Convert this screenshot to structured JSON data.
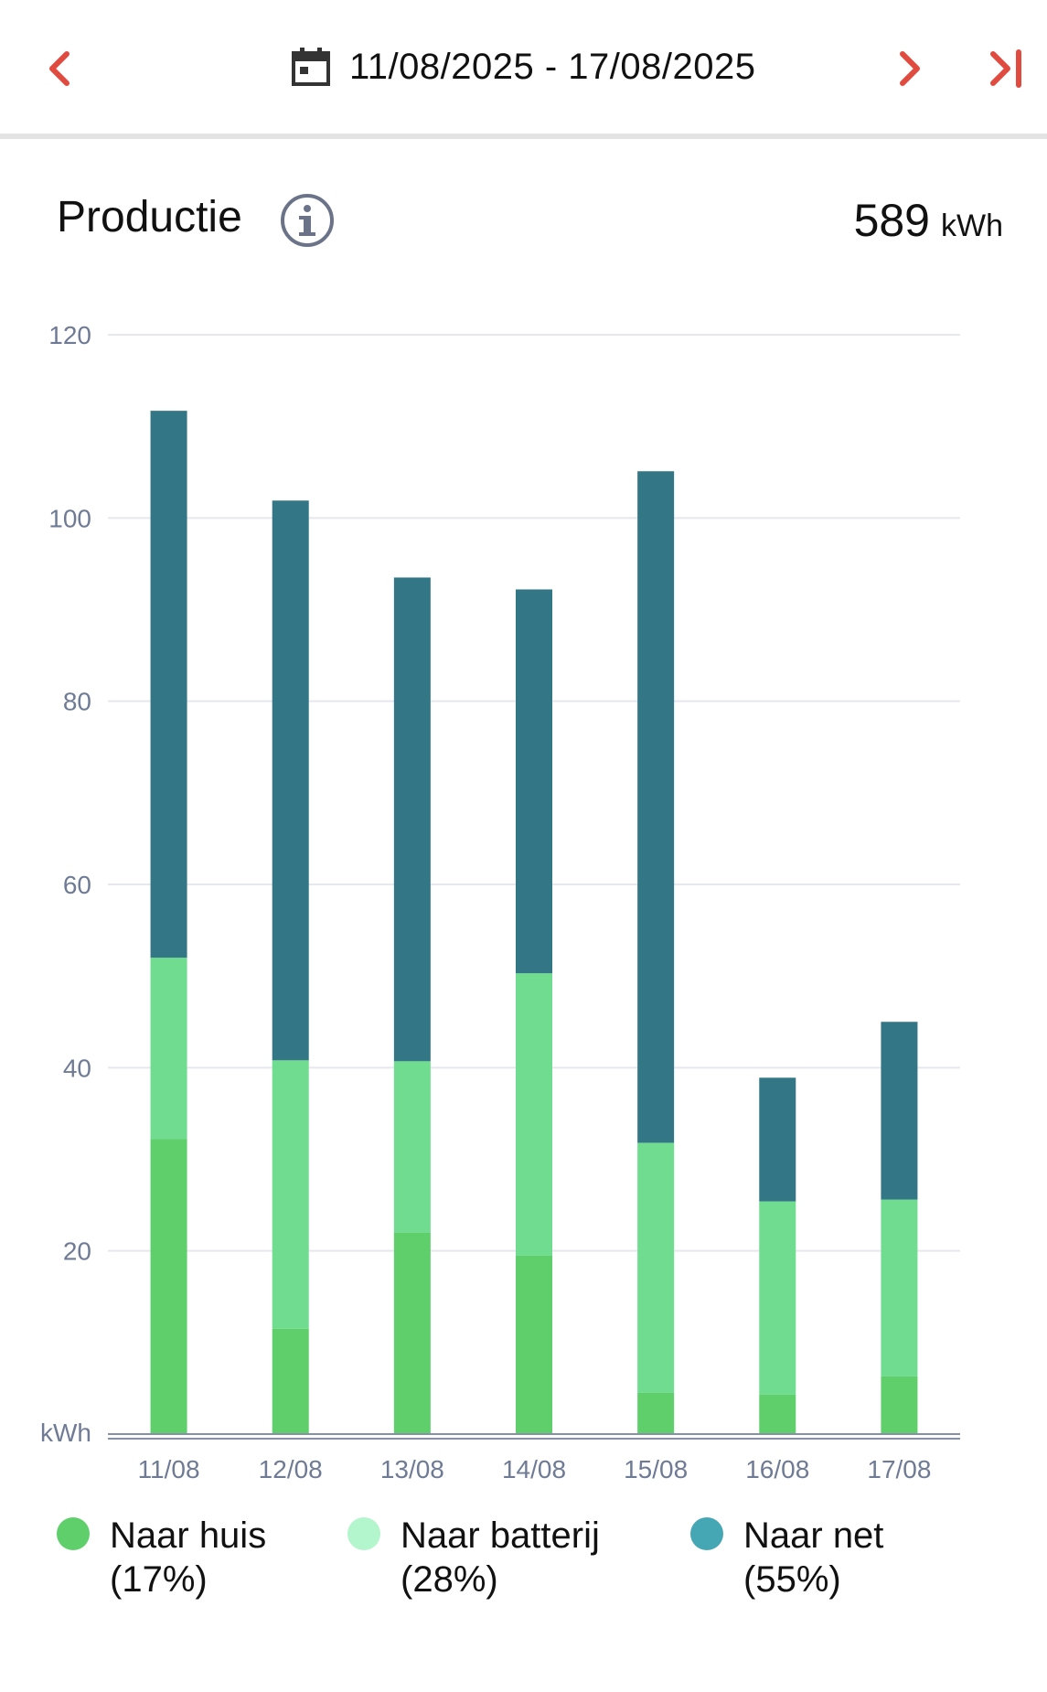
{
  "header": {
    "date_range": "11/08/2025 - 17/08/2025",
    "prev_icon": "chevron-left-icon",
    "next_icon": "chevron-right-icon",
    "last_icon": "skip-to-end-icon",
    "calendar_icon": "calendar-icon",
    "accent_color": "#e04a3f"
  },
  "summary": {
    "title": "Productie",
    "info_icon": "info-icon",
    "total_value": "589",
    "total_unit": "kWh"
  },
  "chart_data": {
    "type": "bar",
    "stacked": true,
    "categories": [
      "11/08",
      "12/08",
      "13/08",
      "14/08",
      "15/08",
      "16/08",
      "17/08"
    ],
    "series": [
      {
        "name": "Naar huis",
        "percent": "(17%)",
        "color": "#5ecf6a",
        "legend_color": "#5ecf6a",
        "values": [
          32.2,
          11.5,
          22.0,
          19.5,
          4.5,
          4.3,
          6.3
        ]
      },
      {
        "name": "Naar batterij",
        "percent": "(28%)",
        "color": "#6fdc8f",
        "legend_color": "#b3f5cc",
        "values": [
          19.8,
          29.3,
          18.7,
          30.8,
          27.3,
          21.1,
          19.3
        ]
      },
      {
        "name": "Naar net",
        "percent": "(55%)",
        "color": "#337786",
        "legend_color": "#46a7b4",
        "values": [
          59.7,
          61.1,
          52.8,
          41.9,
          73.3,
          13.5,
          19.4
        ]
      }
    ],
    "yticks": [
      "120",
      "100",
      "80",
      "60",
      "40",
      "20"
    ],
    "ytick_values": [
      120,
      100,
      80,
      60,
      40,
      20
    ],
    "ylabel": "kWh",
    "ylim": [
      0,
      120
    ],
    "grid": true,
    "legend_position": "bottom"
  }
}
